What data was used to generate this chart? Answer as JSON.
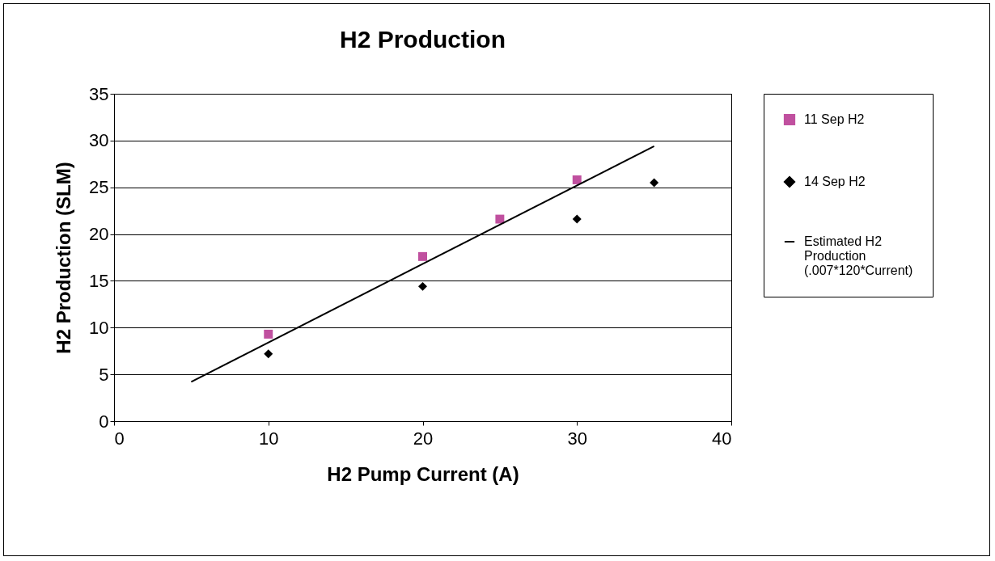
{
  "chart_data": {
    "type": "scatter",
    "title": "H2 Production",
    "xlabel": "H2 Pump Current (A)",
    "ylabel": "H2 Production (SLM)",
    "xlim": [
      0,
      40
    ],
    "xticks": [
      0,
      10,
      20,
      30,
      40
    ],
    "ylim": [
      0,
      35
    ],
    "yticks": [
      0,
      5,
      10,
      15,
      20,
      25,
      30,
      35
    ],
    "grid": "y",
    "legend": "right",
    "series": [
      {
        "name": "11 Sep H2",
        "type": "scatter",
        "marker": "square",
        "color": "#c0509f",
        "x": [
          10,
          20,
          25,
          30
        ],
        "values": [
          9.3,
          17.6,
          21.6,
          25.8
        ]
      },
      {
        "name": "14 Sep H2",
        "type": "scatter",
        "marker": "diamond",
        "color": "#000000",
        "x": [
          10,
          20,
          30,
          35
        ],
        "values": [
          7.2,
          14.4,
          21.6,
          25.5
        ]
      },
      {
        "name": "Estimated H2 Production (.007*120*Current)",
        "type": "line",
        "marker": "none",
        "color": "#000000",
        "x": [
          5,
          35
        ],
        "values": [
          4.2,
          29.4
        ]
      }
    ]
  }
}
